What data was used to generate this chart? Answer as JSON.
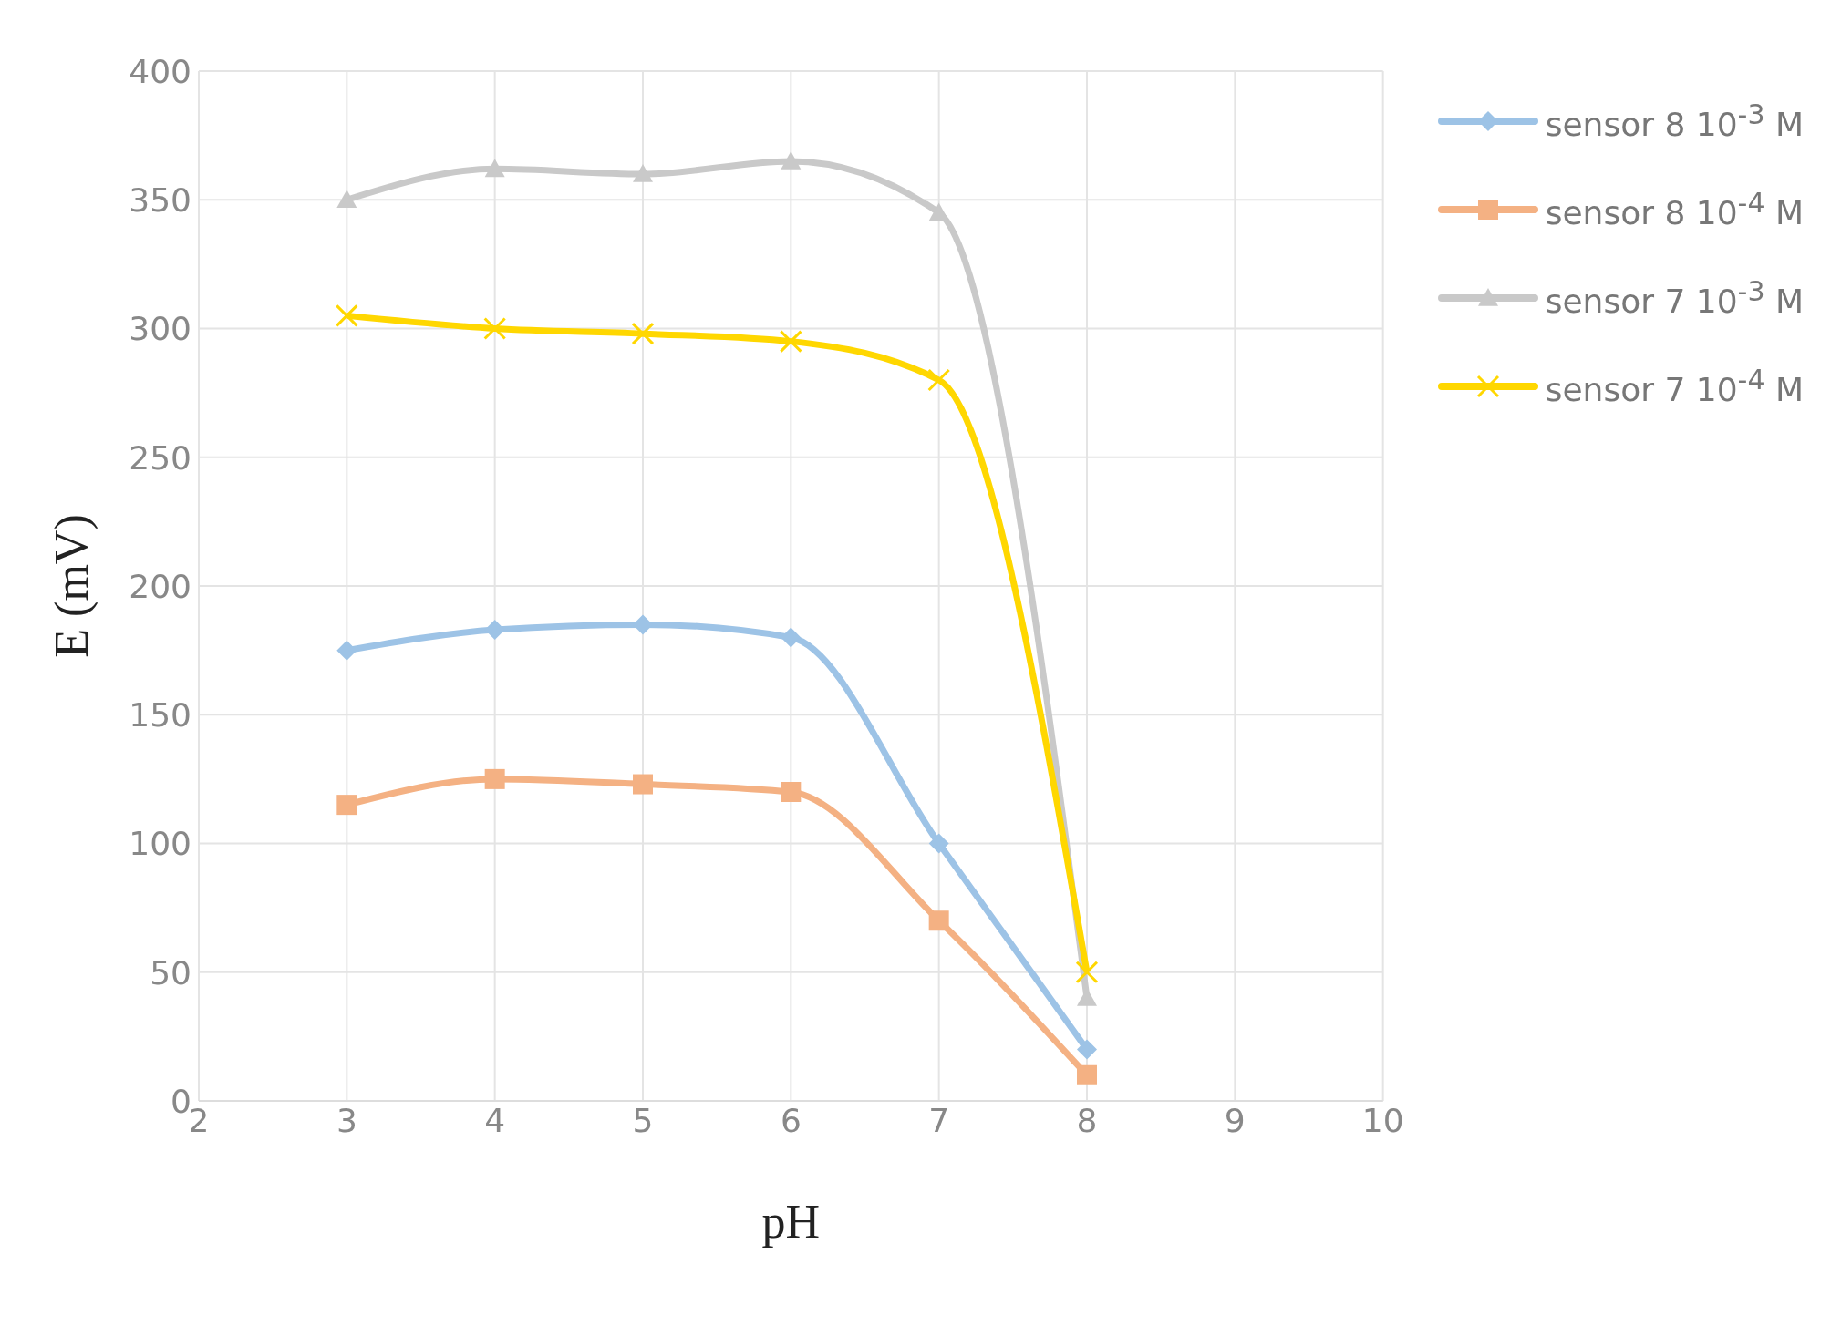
{
  "chart_data": {
    "type": "line",
    "xlabel": "pH",
    "ylabel": "E (mV)",
    "x": [
      3,
      4,
      5,
      6,
      7,
      8
    ],
    "xlim": [
      2,
      10
    ],
    "xticks": [
      2,
      3,
      4,
      5,
      6,
      7,
      8,
      9,
      10
    ],
    "ylim": [
      0,
      400
    ],
    "yticks": [
      0,
      50,
      100,
      150,
      200,
      250,
      300,
      350,
      400
    ],
    "grid": true,
    "legend": "top right",
    "series": [
      {
        "name": "sensor 8 10$^{-3}$ M",
        "color": "#9dc3e6",
        "marker": "diamond",
        "values": [
          175,
          183,
          185,
          180,
          100,
          20
        ]
      },
      {
        "name": "sensor 8 10$^{-4}$ M",
        "color": "#f4b183",
        "marker": "square",
        "values": [
          115,
          125,
          123,
          120,
          70,
          10
        ]
      },
      {
        "name": "sensor 7 10$^{-3}$ M",
        "color": "#c9c9c9",
        "marker": "triangle",
        "values": [
          350,
          362,
          360,
          365,
          345,
          40
        ]
      },
      {
        "name": "sensor 7 10$^{-4}$ M",
        "color": "#ffd700",
        "marker": "cross",
        "values": [
          305,
          300,
          298,
          295,
          280,
          50
        ]
      }
    ]
  }
}
